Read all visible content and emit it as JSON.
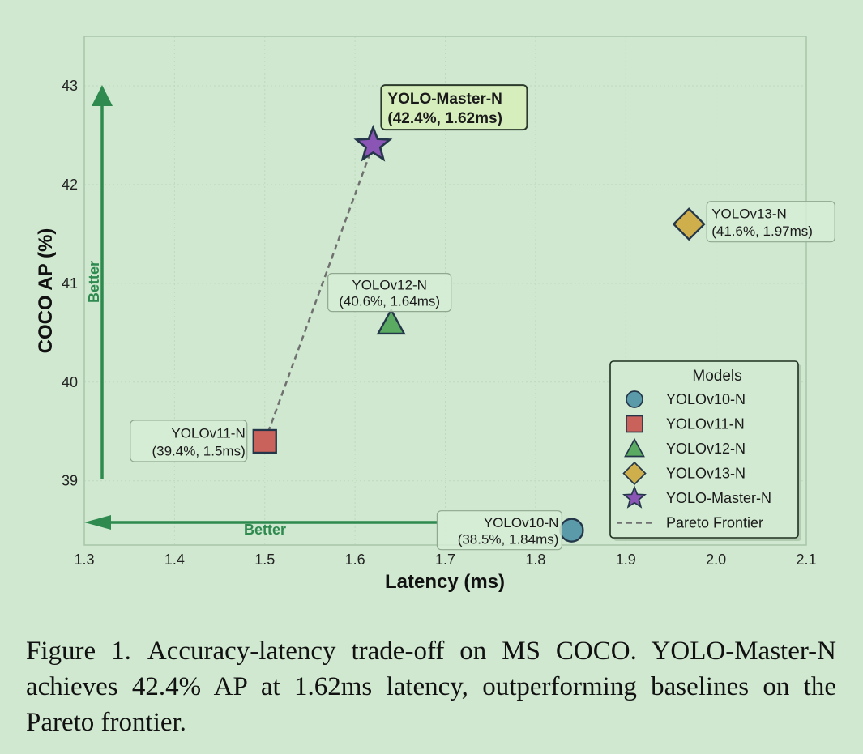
{
  "chart_data": {
    "type": "scatter",
    "xlabel": "Latency (ms)",
    "ylabel": "COCO AP (%)",
    "xlim": [
      1.3,
      2.1
    ],
    "ylim": [
      38.35,
      43.5
    ],
    "x_ticks": [
      1.3,
      1.4,
      1.5,
      1.6,
      1.7,
      1.8,
      1.9,
      2.0,
      2.1
    ],
    "x_tick_labels": [
      "1.3",
      "1.4",
      "1.5",
      "1.6",
      "1.7",
      "1.8",
      "1.9",
      "2.0",
      "2.1"
    ],
    "y_ticks": [
      39,
      40,
      41,
      42,
      43
    ],
    "y_tick_labels": [
      "39",
      "40",
      "41",
      "42",
      "43"
    ],
    "grid": true,
    "series": [
      {
        "name": "YOLOv10-N",
        "x": 1.84,
        "y": 38.5,
        "marker": "circle",
        "color": "#5b9aa8",
        "label_line1": "YOLOv10-N",
        "label_line2": "(38.5%, 1.84ms)"
      },
      {
        "name": "YOLOv11-N",
        "x": 1.5,
        "y": 39.4,
        "marker": "square",
        "color": "#c9625a",
        "label_line1": "YOLOv11-N",
        "label_line2": "(39.4%, 1.5ms)"
      },
      {
        "name": "YOLOv12-N",
        "x": 1.64,
        "y": 40.6,
        "marker": "triangle",
        "color": "#5aaa62",
        "label_line1": "YOLOv12-N",
        "label_line2": "(40.6%, 1.64ms)"
      },
      {
        "name": "YOLOv13-N",
        "x": 1.97,
        "y": 41.6,
        "marker": "diamond",
        "color": "#cfae4c",
        "label_line1": "YOLOv13-N",
        "label_line2": "(41.6%, 1.97ms)"
      },
      {
        "name": "YOLO-Master-N",
        "x": 1.62,
        "y": 42.4,
        "marker": "star",
        "color": "#8a55b5",
        "label_line1": "YOLO-Master-N",
        "label_line2": "(42.4%, 1.62ms)"
      }
    ],
    "pareto_frontier": {
      "name": "Pareto Frontier",
      "points": [
        [
          1.5,
          39.4
        ],
        [
          1.62,
          42.4
        ]
      ]
    },
    "legend": {
      "title": "Models",
      "position": "bottom-right",
      "entries": [
        "YOLOv10-N",
        "YOLOv11-N",
        "YOLOv12-N",
        "YOLOv13-N",
        "YOLO-Master-N",
        "Pareto Frontier"
      ]
    },
    "annotations": [
      {
        "text": "Better",
        "direction": "up"
      },
      {
        "text": "Better",
        "direction": "left"
      }
    ]
  },
  "caption": {
    "label": "Figure 1.",
    "text": "Accuracy-latency trade-off on MS COCO. YOLO-Master-N achieves 42.4% AP at 1.62ms latency, outperforming baselines on the Pareto frontier."
  },
  "colors": {
    "background": "#cfe8cf",
    "axis": "#a9c6a9",
    "grid": "#bfd9bf",
    "arrow": "#2e8a4f",
    "frontier": "#707070",
    "outline": "#24364a"
  }
}
